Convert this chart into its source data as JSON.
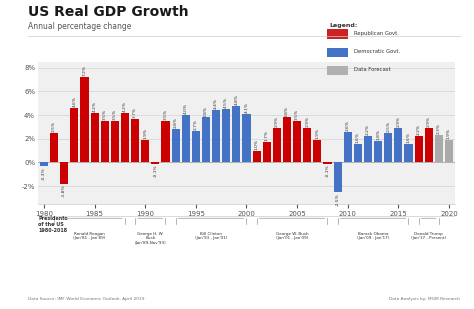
{
  "title": "US Real GDP Growth",
  "subtitle": "Annual percentage change",
  "years": [
    1980,
    1981,
    1982,
    1983,
    1984,
    1985,
    1986,
    1987,
    1988,
    1989,
    1990,
    1991,
    1992,
    1993,
    1994,
    1995,
    1996,
    1997,
    1998,
    1999,
    2000,
    2001,
    2002,
    2003,
    2004,
    2005,
    2006,
    2007,
    2008,
    2009,
    2010,
    2011,
    2012,
    2013,
    2014,
    2015,
    2016,
    2017,
    2018,
    2019,
    2020
  ],
  "values": [
    -0.3,
    2.5,
    -1.8,
    4.6,
    7.2,
    4.2,
    3.5,
    3.5,
    4.2,
    3.7,
    1.9,
    -0.1,
    3.5,
    2.8,
    4.0,
    2.7,
    3.8,
    4.4,
    4.5,
    4.8,
    4.1,
    1.0,
    1.7,
    2.9,
    3.8,
    3.5,
    2.9,
    1.9,
    -0.1,
    -2.5,
    2.6,
    1.6,
    2.2,
    1.8,
    2.5,
    2.9,
    1.6,
    2.2,
    2.9,
    2.3,
    1.9
  ],
  "colors": [
    "#4472c4",
    "#cc0000",
    "#cc0000",
    "#cc0000",
    "#cc0000",
    "#cc0000",
    "#cc0000",
    "#cc0000",
    "#cc0000",
    "#cc0000",
    "#cc0000",
    "#cc0000",
    "#cc0000",
    "#4472c4",
    "#4472c4",
    "#4472c4",
    "#4472c4",
    "#4472c4",
    "#4472c4",
    "#4472c4",
    "#4472c4",
    "#cc0000",
    "#cc0000",
    "#cc0000",
    "#cc0000",
    "#cc0000",
    "#cc0000",
    "#cc0000",
    "#cc0000",
    "#4472c4",
    "#4472c4",
    "#4472c4",
    "#4472c4",
    "#4472c4",
    "#4472c4",
    "#4472c4",
    "#4472c4",
    "#cc0000",
    "#cc0000",
    "#aaaaaa",
    "#aaaaaa"
  ],
  "presidents": [
    {
      "name": "Ronald Reagan\n(Jan'81 - Jan'89)",
      "start_year": 1981,
      "end_year": 1989
    },
    {
      "name": "George H. W.\nBush\n(Jan'89-Nov'93)",
      "start_year": 1989,
      "end_year": 1993
    },
    {
      "name": "Bill Clinton\n(Jan'93 - Jan'01)",
      "start_year": 1993,
      "end_year": 2001
    },
    {
      "name": "George W. Bush\n(Jan'01 - Jan'09)",
      "start_year": 2001,
      "end_year": 2009
    },
    {
      "name": "Barack Obama\n(Jan'09 - Jan'17)",
      "start_year": 2009,
      "end_year": 2017
    },
    {
      "name": "Donald Trump\n(Jan'17 - Present)",
      "start_year": 2017,
      "end_year": 2021
    }
  ],
  "pres_label": "Presidents\nof the US\n1980-2018",
  "footnote_left": "Data Source: IMF World Economic Outlook, April 2019",
  "footnote_right": "Data Analysis by: MGM Research",
  "ylim": [
    -3.5,
    8.5
  ],
  "yticks": [
    -2,
    0,
    2,
    4,
    6,
    8
  ],
  "background_color": "#ffffff",
  "plot_bg": "#f0f0f0",
  "red_color": "#cc2222",
  "blue_color": "#4472c4",
  "gray_color": "#b0b0b0",
  "legend_title": "Legend:"
}
